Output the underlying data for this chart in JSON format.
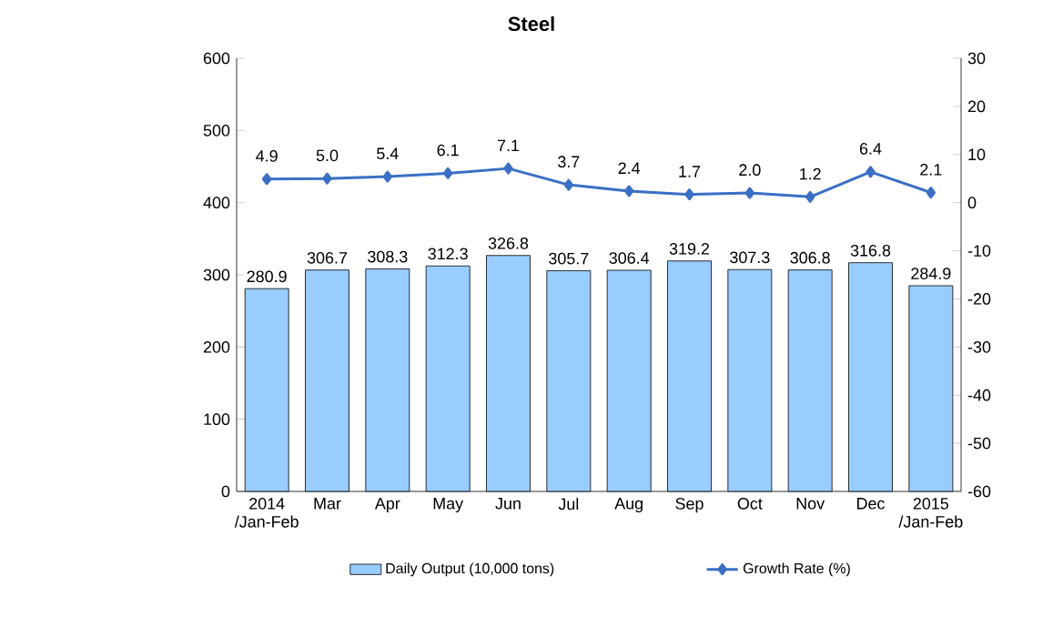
{
  "chart_data": {
    "type": "bar",
    "title": "Steel",
    "categories": [
      "2014 /Jan-Feb",
      "Mar",
      "Apr",
      "May",
      "Jun",
      "Jul",
      "Aug",
      "Sep",
      "Oct",
      "Nov",
      "Dec",
      "2015 /Jan-Feb"
    ],
    "series": [
      {
        "name": "Daily Output (10,000 tons)",
        "color": "#99ccff",
        "values": [
          280.9,
          306.7,
          308.3,
          312.3,
          326.8,
          305.7,
          306.4,
          319.2,
          307.3,
          306.8,
          316.8,
          284.9
        ],
        "value_labels": [
          "280.9",
          "306.7",
          "308.3",
          "312.3",
          "326.8",
          "305.7",
          "306.4",
          "319.2",
          "307.3",
          "306.8",
          "316.8",
          "284.9"
        ]
      },
      {
        "name": "Growth Rate (%)",
        "type": "line",
        "axis": "y2",
        "color": "#3a6fc4",
        "marker": "diamond",
        "values": [
          4.9,
          5.0,
          5.4,
          6.1,
          7.1,
          3.7,
          2.4,
          1.7,
          2.0,
          1.2,
          6.4,
          2.1
        ],
        "value_labels": [
          "4.9",
          "5.0",
          "5.4",
          "6.1",
          "7.1",
          "3.7",
          "2.4",
          "1.7",
          "2.0",
          "1.2",
          "6.4",
          "2.1"
        ]
      }
    ],
    "ylim": [
      0,
      600
    ],
    "yticks": [
      0,
      100,
      200,
      300,
      400,
      500,
      600
    ],
    "y2lim": [
      -60,
      30
    ],
    "y2ticks": [
      -60,
      -50,
      -40,
      -30,
      -20,
      -10,
      0,
      10,
      20,
      30
    ],
    "legend": "bottom",
    "grid": false
  }
}
